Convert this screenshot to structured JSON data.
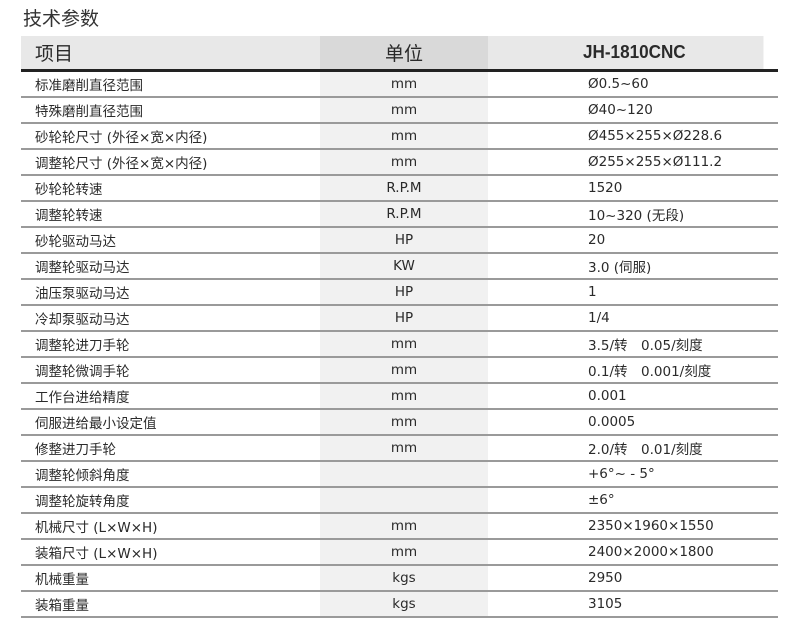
{
  "title": "技术参数",
  "headers": [
    "项目",
    "单位",
    "JH-1810CNC"
  ],
  "rows": [
    [
      "标准磨削直径范围",
      "mm",
      "Ø0.5~60"
    ],
    [
      "特殊磨削直径范围",
      "mm",
      "Ø40~120"
    ],
    [
      "砂轮轮尺寸 (外径×宽×内径)",
      "mm",
      "Ø455×255×Ø228.6"
    ],
    [
      "调整轮尺寸 (外径×宽×内径)",
      "mm",
      "Ø255×255×Ø111.2"
    ],
    [
      "砂轮轮转速",
      "R.P.M",
      "1520"
    ],
    [
      "调整轮转速",
      "R.P.M",
      "10~320 (无段)"
    ],
    [
      "砂轮驱动马达",
      "HP",
      "20"
    ],
    [
      "调整轮驱动马达",
      "KW",
      "3.0 (伺服)"
    ],
    [
      "油压泵驱动马达",
      "HP",
      "1"
    ],
    [
      "冷却泵驱动马达",
      "HP",
      "1/4"
    ],
    [
      "调整轮进刀手轮",
      "mm",
      "3.5/转　0.05/刻度"
    ],
    [
      "调整轮微调手轮",
      "mm",
      "0.1/转　0.001/刻度"
    ],
    [
      "工作台进给精度",
      "mm",
      "0.001"
    ],
    [
      "伺服进给最小设定值",
      "mm",
      "0.0005"
    ],
    [
      "修整进刀手轮",
      "mm",
      "2.0/转　0.01/刻度"
    ],
    [
      "调整轮倾斜角度",
      "",
      "+6°~ - 5°"
    ],
    [
      "调整轮旋转角度",
      "",
      "±6°"
    ],
    [
      "机械尺寸 (L×W×H)",
      "mm",
      "2350×1960×1550"
    ],
    [
      "装箱尺寸 (L×W×H)",
      "mm",
      "2400×2000×1800"
    ],
    [
      "机械重量",
      "kgs",
      "2950"
    ],
    [
      "装箱重量",
      "kgs",
      "3105"
    ]
  ]
}
